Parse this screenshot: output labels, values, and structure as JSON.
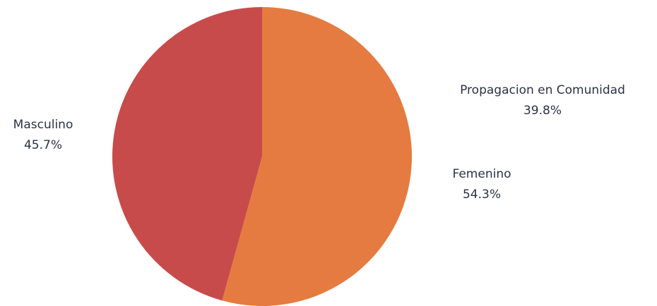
{
  "chart_data": {
    "type": "pie",
    "title": "",
    "slices": [
      {
        "label": "Femenino",
        "value": 54.3,
        "value_label": "54.3%",
        "color": "#e57b40"
      },
      {
        "label": "Masculino",
        "value": 45.7,
        "value_label": "45.7%",
        "color": "#c84b4b"
      }
    ],
    "extra_labels": [
      {
        "label": "Propagacion en Comunidad",
        "value_label": "39.8%"
      }
    ],
    "start_angle_deg": 0,
    "direction": "clockwise",
    "legend": "none"
  }
}
